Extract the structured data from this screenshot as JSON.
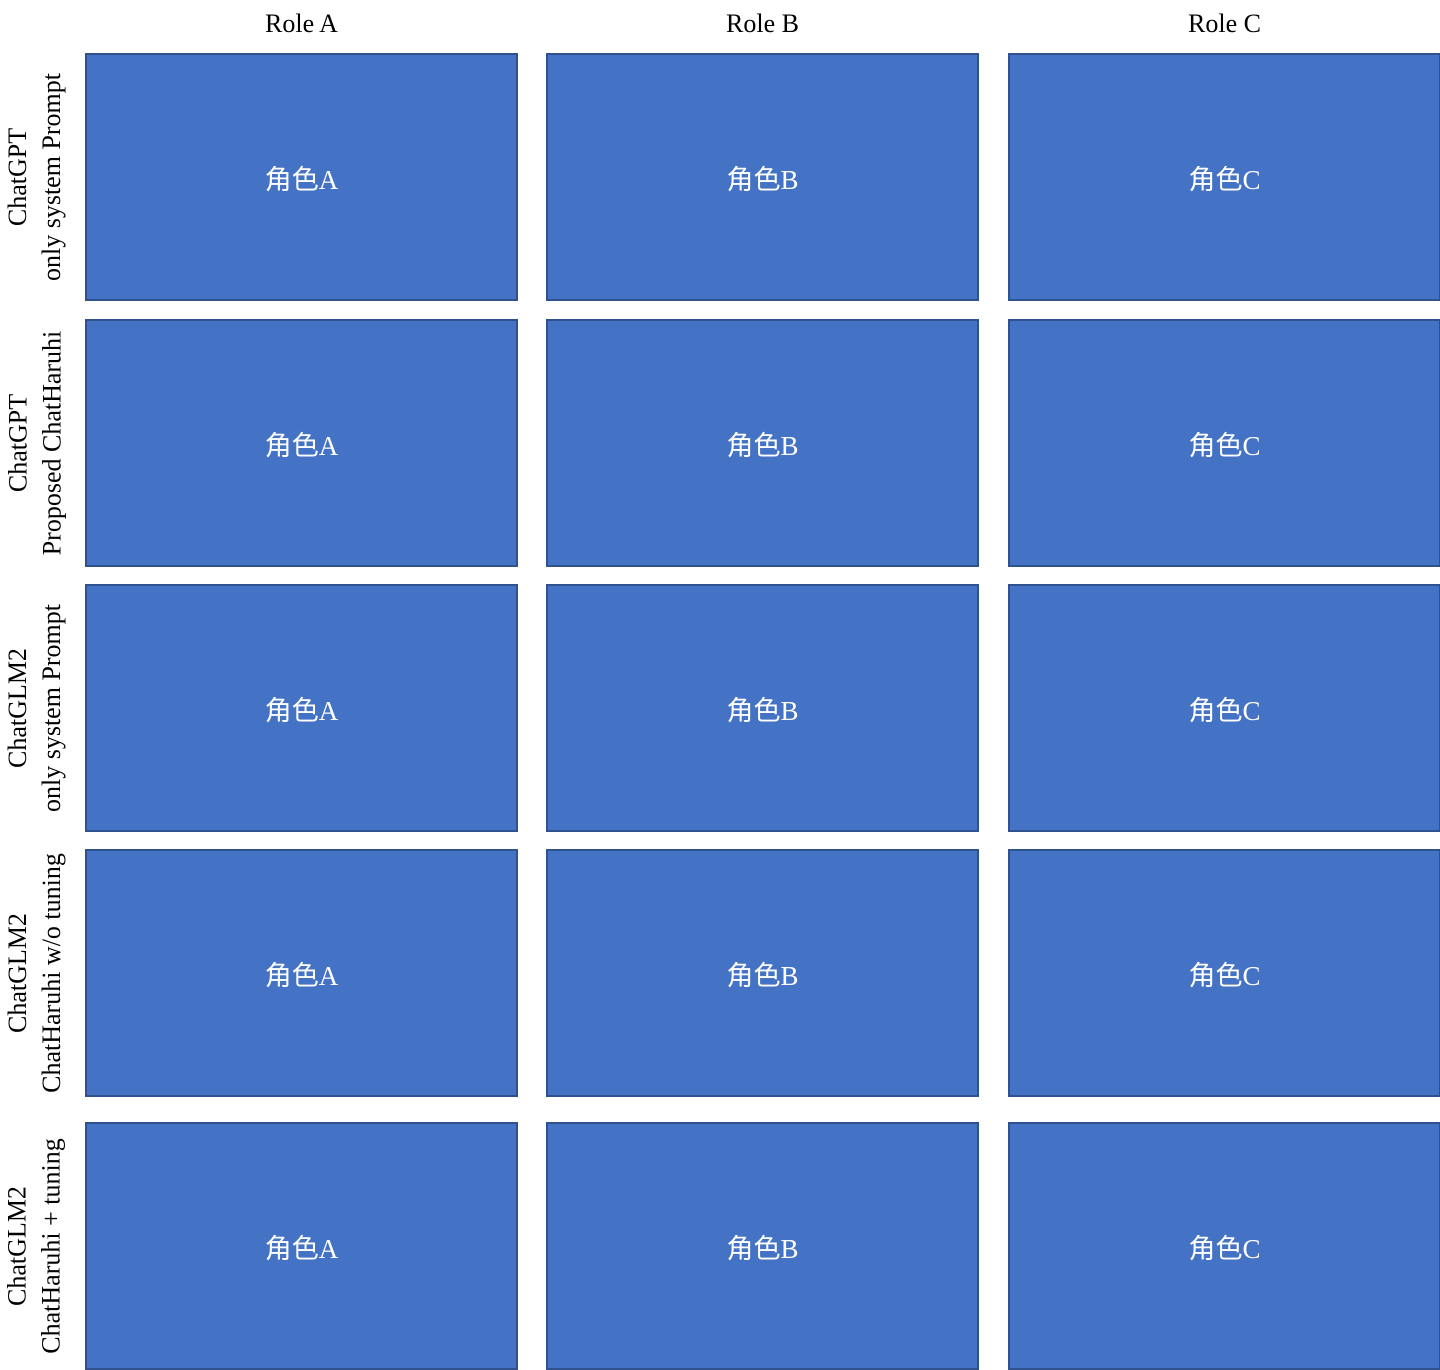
{
  "columns": [
    {
      "label": "Role A"
    },
    {
      "label": "Role B"
    },
    {
      "label": "Role C"
    }
  ],
  "rows": [
    {
      "line1": "ChatGPT",
      "line2": "only system Prompt",
      "cells": [
        "角色A",
        "角色B",
        "角色C"
      ]
    },
    {
      "line1": "ChatGPT",
      "line2": "Proposed ChatHaruhi",
      "cells": [
        "角色A",
        "角色B",
        "角色C"
      ]
    },
    {
      "line1": "ChatGLM2",
      "line2": "only system Prompt",
      "cells": [
        "角色A",
        "角色B",
        "角色C"
      ]
    },
    {
      "line1": "ChatGLM2",
      "line2": "ChatHaruhi w/o tuning",
      "cells": [
        "角色A",
        "角色B",
        "角色C"
      ]
    },
    {
      "line1": "ChatGLM2",
      "line2": "ChatHaruhi + tuning",
      "cells": [
        "角色A",
        "角色B",
        "角色C"
      ]
    }
  ],
  "colors": {
    "cell_fill": "#4472c4",
    "cell_border": "#2f528f",
    "cell_text": "#ffffff"
  }
}
